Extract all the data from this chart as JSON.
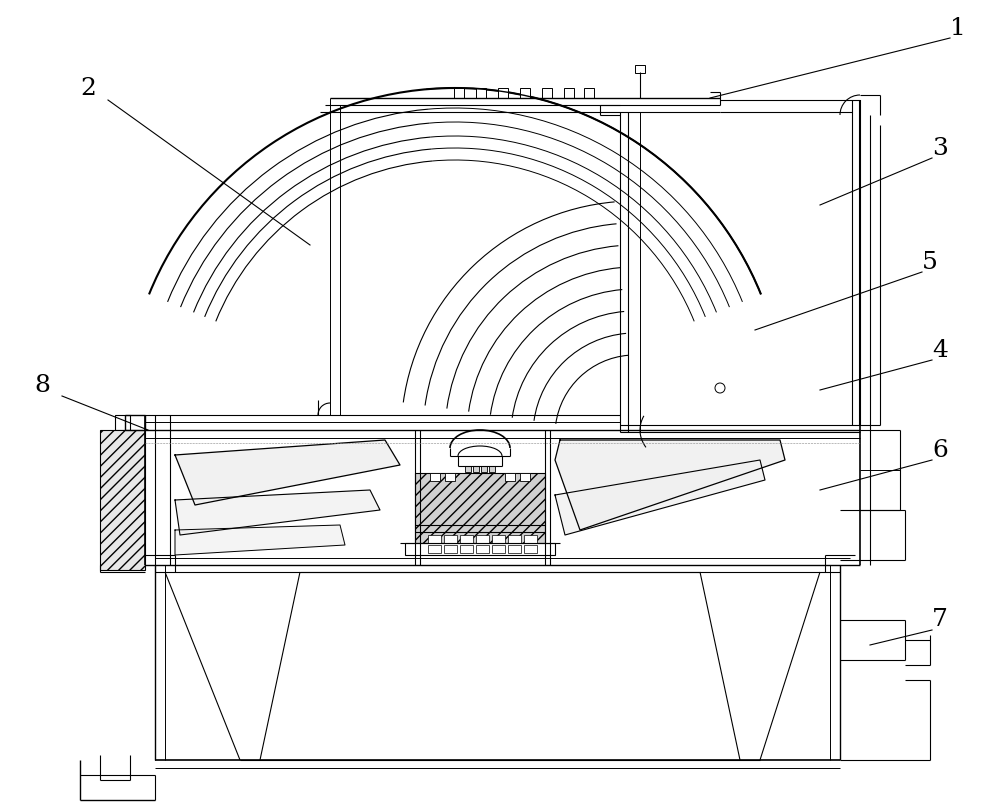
{
  "background_color": "#ffffff",
  "line_color": "#000000",
  "fig_width": 10.0,
  "fig_height": 8.09,
  "dpi": 100,
  "annotation_data": [
    [
      "1",
      958,
      28,
      950,
      38,
      710,
      98
    ],
    [
      "2",
      88,
      88,
      108,
      100,
      310,
      245
    ],
    [
      "3",
      940,
      148,
      932,
      158,
      820,
      205
    ],
    [
      "5",
      930,
      262,
      922,
      272,
      755,
      330
    ],
    [
      "4",
      940,
      350,
      932,
      360,
      820,
      390
    ],
    [
      "6",
      940,
      450,
      932,
      460,
      820,
      490
    ],
    [
      "7",
      940,
      620,
      932,
      630,
      870,
      645
    ],
    [
      "8",
      42,
      385,
      62,
      396,
      148,
      430
    ]
  ]
}
